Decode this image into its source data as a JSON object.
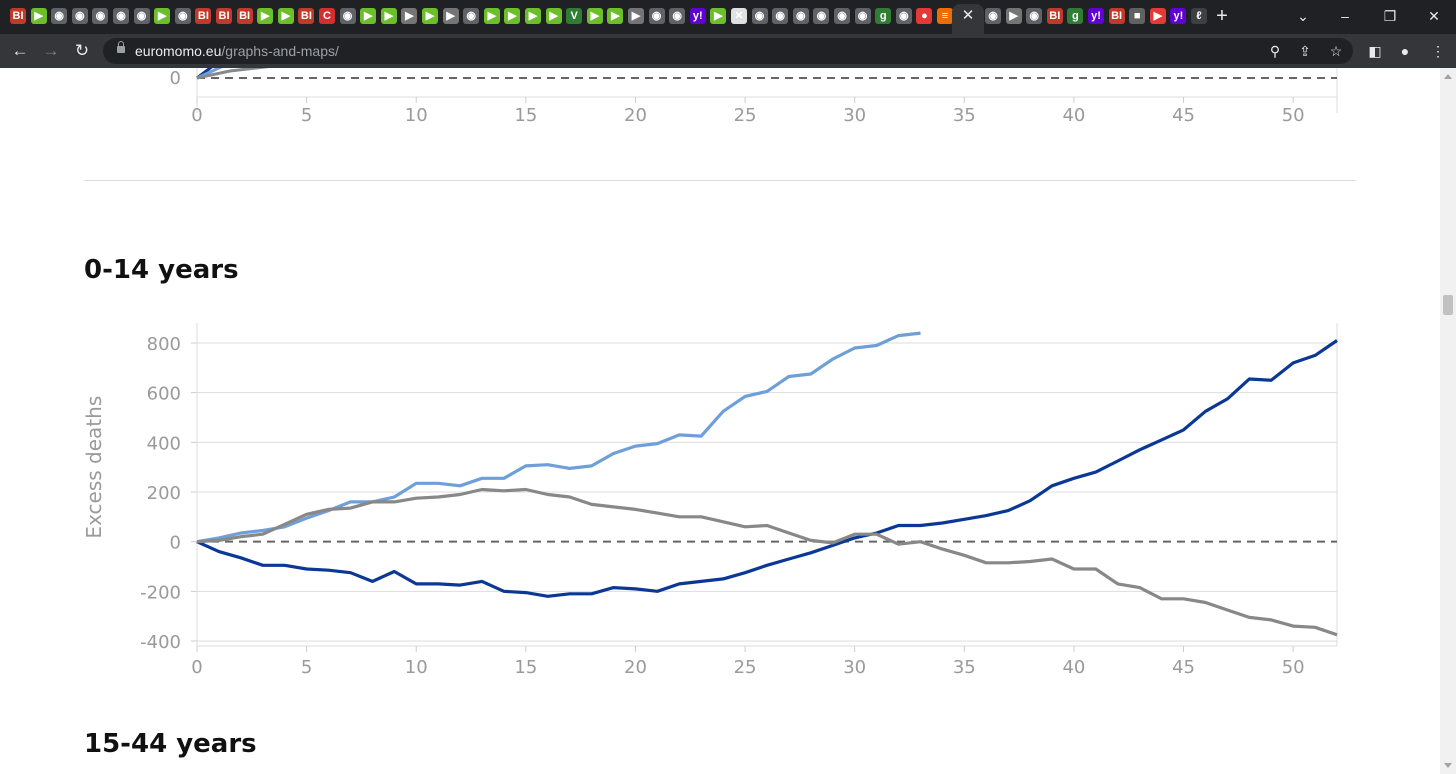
{
  "browser": {
    "tabs": [
      {
        "icon": "business-insider-icon",
        "glyph": "BI",
        "color": "#c0392b"
      },
      {
        "icon": "play-icon",
        "glyph": "▶",
        "color": "#6cbf2a"
      },
      {
        "icon": "globe-icon",
        "glyph": "◉",
        "color": "#5f6368"
      },
      {
        "icon": "globe-icon",
        "glyph": "◉",
        "color": "#5f6368"
      },
      {
        "icon": "globe-icon",
        "glyph": "◉",
        "color": "#5f6368"
      },
      {
        "icon": "globe-icon",
        "glyph": "◉",
        "color": "#5f6368"
      },
      {
        "icon": "globe-icon",
        "glyph": "◉",
        "color": "#5f6368"
      },
      {
        "icon": "play-icon",
        "glyph": "▶",
        "color": "#6cbf2a"
      },
      {
        "icon": "globe-icon",
        "glyph": "◉",
        "color": "#5f6368"
      },
      {
        "icon": "business-insider-icon",
        "glyph": "BI",
        "color": "#c0392b"
      },
      {
        "icon": "business-insider-icon",
        "glyph": "BI",
        "color": "#c0392b"
      },
      {
        "icon": "business-insider-icon",
        "glyph": "BI",
        "color": "#c0392b"
      },
      {
        "icon": "play-icon",
        "glyph": "▶",
        "color": "#6cbf2a"
      },
      {
        "icon": "play-icon",
        "glyph": "▶",
        "color": "#6cbf2a"
      },
      {
        "icon": "business-insider-icon",
        "glyph": "BI",
        "color": "#c0392b"
      },
      {
        "icon": "c-logo-icon",
        "glyph": "C",
        "color": "#d32f2f"
      },
      {
        "icon": "globe-icon",
        "glyph": "◉",
        "color": "#5f6368"
      },
      {
        "icon": "play-icon",
        "glyph": "▶",
        "color": "#6cbf2a"
      },
      {
        "icon": "play-icon",
        "glyph": "▶",
        "color": "#6cbf2a"
      },
      {
        "icon": "forward-icon",
        "glyph": "▶",
        "color": "#757575"
      },
      {
        "icon": "play-icon",
        "glyph": "▶",
        "color": "#6cbf2a"
      },
      {
        "icon": "forward-icon",
        "glyph": "▶",
        "color": "#757575"
      },
      {
        "icon": "globe-icon",
        "glyph": "◉",
        "color": "#5f6368"
      },
      {
        "icon": "play-icon",
        "glyph": "▶",
        "color": "#6cbf2a"
      },
      {
        "icon": "play-icon",
        "glyph": "▶",
        "color": "#6cbf2a"
      },
      {
        "icon": "play-icon",
        "glyph": "▶",
        "color": "#6cbf2a"
      },
      {
        "icon": "play-icon",
        "glyph": "▶",
        "color": "#6cbf2a"
      },
      {
        "icon": "vimeo-icon",
        "glyph": "V",
        "color": "#2e7d32"
      },
      {
        "icon": "play-icon",
        "glyph": "▶",
        "color": "#6cbf2a"
      },
      {
        "icon": "play-icon",
        "glyph": "▶",
        "color": "#6cbf2a"
      },
      {
        "icon": "forward-icon",
        "glyph": "▶",
        "color": "#757575"
      },
      {
        "icon": "globe-icon",
        "glyph": "◉",
        "color": "#5f6368"
      },
      {
        "icon": "globe-icon",
        "glyph": "◉",
        "color": "#5f6368"
      },
      {
        "icon": "yahoo-icon",
        "glyph": "y!",
        "color": "#6001d2"
      },
      {
        "icon": "play-icon",
        "glyph": "▶",
        "color": "#6cbf2a"
      },
      {
        "icon": "image-icon",
        "glyph": "✕",
        "color": "#e0e0e0"
      },
      {
        "icon": "globe-icon",
        "glyph": "◉",
        "color": "#5f6368"
      },
      {
        "icon": "globe-icon",
        "glyph": "◉",
        "color": "#5f6368"
      },
      {
        "icon": "globe-icon",
        "glyph": "◉",
        "color": "#5f6368"
      },
      {
        "icon": "globe-icon",
        "glyph": "◉",
        "color": "#5f6368"
      },
      {
        "icon": "globe-icon",
        "glyph": "◉",
        "color": "#5f6368"
      },
      {
        "icon": "globe-icon",
        "glyph": "◉",
        "color": "#5f6368"
      },
      {
        "icon": "g-logo-icon",
        "glyph": "g",
        "color": "#2e7d32"
      },
      {
        "icon": "globe-icon",
        "glyph": "◉",
        "color": "#5f6368"
      },
      {
        "icon": "microphone-icon",
        "glyph": "●",
        "color": "#e53935"
      },
      {
        "icon": "stack-icon",
        "glyph": "≡",
        "color": "#ef6c00"
      }
    ],
    "active_tab_close": "✕",
    "tabs_after": [
      {
        "icon": "globe-icon",
        "glyph": "◉",
        "color": "#5f6368"
      },
      {
        "icon": "forward-icon",
        "glyph": "▶",
        "color": "#757575"
      },
      {
        "icon": "globe-icon",
        "glyph": "◉",
        "color": "#5f6368"
      },
      {
        "icon": "business-insider-icon",
        "glyph": "BI",
        "color": "#c0392b"
      },
      {
        "icon": "g-logo-icon",
        "glyph": "g",
        "color": "#2e7d32"
      },
      {
        "icon": "yahoo-icon",
        "glyph": "y!",
        "color": "#6001d2"
      },
      {
        "icon": "business-insider-icon",
        "glyph": "BI",
        "color": "#c0392b"
      },
      {
        "icon": "box-icon",
        "glyph": "■",
        "color": "#616161"
      },
      {
        "icon": "youtube-icon",
        "glyph": "▶",
        "color": "#e53935"
      },
      {
        "icon": "yahoo-icon",
        "glyph": "y!",
        "color": "#6001d2"
      },
      {
        "icon": "script-icon",
        "glyph": "ℓ",
        "color": "#3c4043"
      }
    ],
    "new_tab": "+",
    "url_host": "euromomo.eu",
    "url_path": "/graphs-and-maps/"
  },
  "page": {
    "sections": [
      {
        "title": "0-14 years"
      },
      {
        "title": "15-44 years"
      }
    ]
  },
  "chart_data": [
    {
      "type": "line",
      "title": "",
      "xlabel": "",
      "ylabel": "",
      "partial": true,
      "x_ticks": [
        "0",
        "5",
        "10",
        "15",
        "20",
        "25",
        "30",
        "35",
        "40",
        "45",
        "50"
      ],
      "y_ticks": [
        "0"
      ],
      "xlim": [
        0,
        52
      ],
      "colors": [
        "#6f9fd8",
        "#0b3894",
        "#888888"
      ]
    },
    {
      "type": "line",
      "title": "0-14 years",
      "xlabel": "",
      "ylabel": "Excess deaths",
      "xlim": [
        0,
        52
      ],
      "ylim": [
        -420,
        880
      ],
      "x_ticks": [
        "0",
        "5",
        "10",
        "15",
        "20",
        "25",
        "30",
        "35",
        "40",
        "45",
        "50"
      ],
      "y_ticks": [
        "800",
        "600",
        "400",
        "200",
        "0",
        "-200",
        "-400"
      ],
      "grid": true,
      "zero_line": "dashed",
      "series": [
        {
          "color": "#6f9fd8",
          "values": [
            0,
            15,
            35,
            45,
            60,
            95,
            125,
            160,
            160,
            180,
            235,
            235,
            225,
            255,
            255,
            305,
            310,
            295,
            305,
            355,
            385,
            395,
            430,
            425,
            525,
            585,
            605,
            665,
            675,
            735,
            780,
            790,
            830,
            840
          ]
        },
        {
          "color": "#0b3894",
          "values": [
            0,
            -40,
            -65,
            -95,
            -95,
            -110,
            -115,
            -125,
            -160,
            -120,
            -170,
            -170,
            -175,
            -160,
            -200,
            -205,
            -220,
            -210,
            -210,
            -185,
            -190,
            -200,
            -170,
            -160,
            -150,
            -125,
            -95,
            -70,
            -45,
            -15,
            15,
            35,
            65,
            65,
            75,
            90,
            105,
            125,
            165,
            225,
            255,
            280,
            325,
            370,
            410,
            450,
            525,
            575,
            655,
            650,
            720,
            750,
            810
          ]
        },
        {
          "color": "#888888",
          "values": [
            0,
            5,
            20,
            30,
            70,
            110,
            130,
            135,
            160,
            160,
            175,
            180,
            190,
            210,
            205,
            210,
            190,
            180,
            150,
            140,
            130,
            115,
            100,
            100,
            80,
            60,
            65,
            35,
            5,
            -5,
            30,
            30,
            -10,
            0,
            -30,
            -55,
            -85,
            -85,
            -80,
            -70,
            -110,
            -110,
            -170,
            -185,
            -230,
            -230,
            -245,
            -275,
            -305,
            -315,
            -340,
            -345,
            -375
          ]
        }
      ]
    }
  ]
}
